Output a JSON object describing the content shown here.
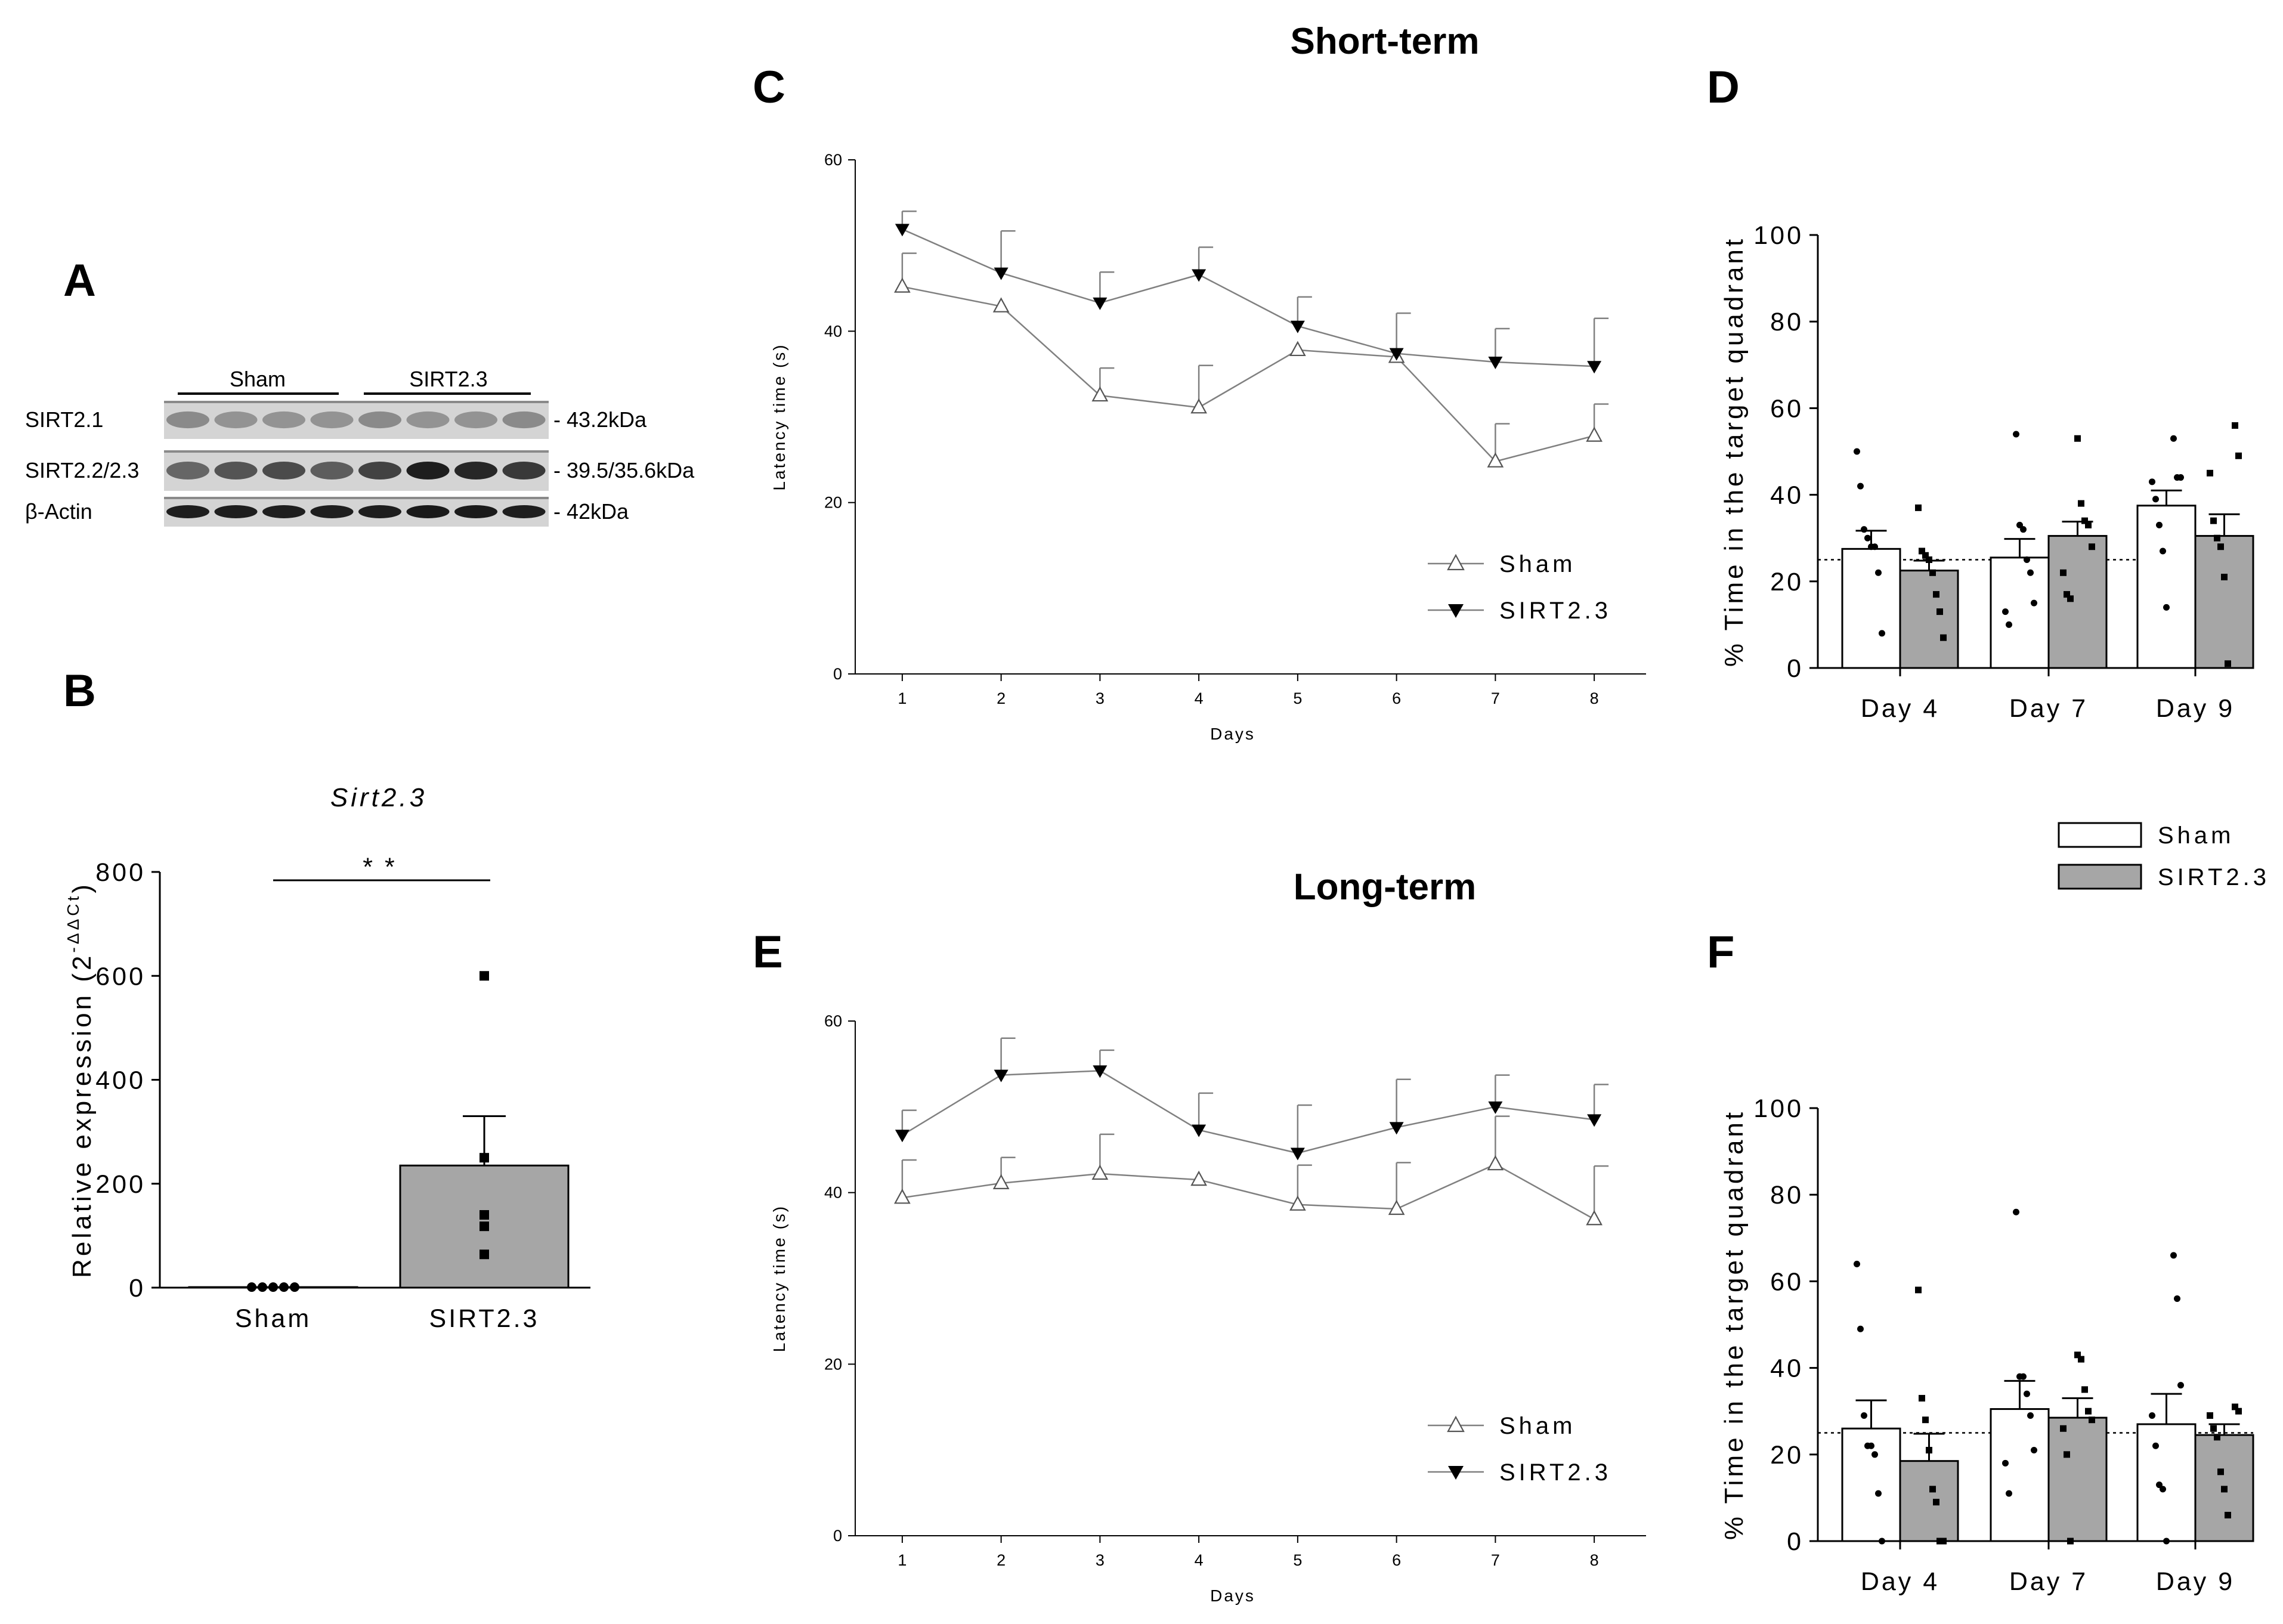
{
  "figure": {
    "short_term_title": "Short-term",
    "long_term_title": "Long-term",
    "panel_letters": [
      "A",
      "B",
      "C",
      "D",
      "E",
      "F"
    ]
  },
  "colors": {
    "bar_sirt": "#a6a6a6",
    "bar_sham": "#ffffff",
    "line": "#808080",
    "ink": "#000000"
  },
  "western_blot": {
    "group_labels": [
      "Sham",
      "SIRT2.3"
    ],
    "band_labels_left": [
      "SIRT2.1",
      "SIRT2.2/2.3",
      "β-Actin"
    ],
    "band_labels_right": [
      "- 43.2kDa",
      "- 39.5/35.6kDa",
      "- 42kDa"
    ],
    "band_intensity": {
      "sirt21": [
        0.35,
        0.3,
        0.3,
        0.3,
        0.35,
        0.3,
        0.3,
        0.35
      ],
      "sirt223": [
        0.55,
        0.65,
        0.7,
        0.6,
        0.75,
        0.95,
        0.9,
        0.8
      ],
      "actin": [
        0.95,
        0.95,
        0.95,
        0.95,
        0.95,
        0.97,
        0.97,
        0.95
      ]
    }
  },
  "chart_data": [
    {
      "panel": "B",
      "type": "bar",
      "title": "Sirt2.3",
      "categories": [
        "Sham",
        "SIRT2.3"
      ],
      "values": [
        1,
        235
      ],
      "sem": [
        0,
        95
      ],
      "points": [
        [
          1,
          1,
          1,
          1,
          1
        ],
        [
          600,
          250,
          140,
          118,
          64
        ]
      ],
      "ylabel": "Relative expression (2-ΔΔCt)",
      "ylabel_main": "Relative expression (2",
      "ylabel_sup": "-ΔΔCt",
      "ylabel_close": ")",
      "ylim": [
        0,
        800
      ],
      "yticks": [
        0,
        200,
        400,
        600,
        800
      ],
      "significance": "* *"
    },
    {
      "panel": "C",
      "type": "line",
      "title": "Short-term",
      "x": [
        1,
        2,
        3,
        4,
        5,
        6,
        7,
        8
      ],
      "series": [
        {
          "name": "Sham",
          "values": [
            45.2,
            42.9,
            32.5,
            31.1,
            37.8,
            37.0,
            24.8,
            27.8
          ],
          "sem": [
            3.9,
            0,
            3.2,
            4.9,
            0,
            0,
            4.4,
            3.7
          ]
        },
        {
          "name": "SIRT2.3",
          "values": [
            51.9,
            46.8,
            43.3,
            46.6,
            40.6,
            37.4,
            36.4,
            35.9
          ],
          "sem": [
            2.1,
            4.9,
            3.6,
            3.2,
            3.4,
            4.7,
            3.9,
            5.6
          ]
        }
      ],
      "xlabel": "Days",
      "ylabel": "Latency time (s)",
      "ylim": [
        0,
        60
      ],
      "yticks": [
        0,
        20,
        40,
        60
      ],
      "legend": "bottom-right"
    },
    {
      "panel": "D",
      "type": "bar",
      "categories": [
        "Day 4",
        "Day 7",
        "Day 9"
      ],
      "series": [
        {
          "name": "Sham",
          "values": [
            27.5,
            25.5,
            37.5
          ],
          "sem": [
            4.2,
            4.3,
            3.5
          ],
          "points": [
            [
              50,
              42,
              32,
              30,
              28,
              28,
              22,
              8
            ],
            [
              54,
              33,
              32,
              25,
              22,
              15,
              13,
              10
            ],
            [
              53,
              44,
              44,
              43,
              39,
              33,
              27,
              14
            ]
          ]
        },
        {
          "name": "SIRT2.3",
          "values": [
            22.5,
            30.5,
            30.5
          ],
          "sem": [
            2.3,
            3.3,
            5.0
          ],
          "points": [
            [
              37,
              27,
              26,
              25,
              22,
              17,
              13,
              7
            ],
            [
              53,
              38,
              34,
              33,
              28,
              22,
              17,
              16
            ],
            [
              56,
              49,
              45,
              34,
              30,
              28,
              21,
              1
            ]
          ]
        }
      ],
      "chance_level": 25,
      "ylabel": "% Time in the target quadrant",
      "ylim": [
        0,
        100
      ],
      "yticks": [
        0,
        20,
        40,
        60,
        80,
        100
      ]
    },
    {
      "panel": "E",
      "type": "line",
      "title": "Long-term",
      "x": [
        1,
        2,
        3,
        4,
        5,
        6,
        7,
        8
      ],
      "series": [
        {
          "name": "Sham",
          "values": [
            39.4,
            41.1,
            42.2,
            41.5,
            38.6,
            38.1,
            43.3,
            36.9
          ],
          "sem": [
            4.4,
            3.0,
            4.6,
            0,
            4.6,
            5.4,
            5.6,
            6.2
          ]
        },
        {
          "name": "SIRT2.3",
          "values": [
            46.7,
            53.7,
            54.2,
            47.3,
            44.6,
            47.6,
            50.0,
            48.5
          ],
          "sem": [
            2.9,
            4.3,
            2.4,
            4.3,
            5.6,
            5.6,
            3.7,
            4.1
          ]
        }
      ],
      "xlabel": "Days",
      "ylabel": "Latency time (s)",
      "ylim": [
        0,
        60
      ],
      "yticks": [
        0,
        20,
        40,
        60
      ],
      "legend": "bottom-right"
    },
    {
      "panel": "F",
      "type": "bar",
      "categories": [
        "Day 4",
        "Day 7",
        "Day 9"
      ],
      "series": [
        {
          "name": "Sham",
          "values": [
            26.0,
            30.5,
            27.0
          ],
          "sem": [
            6.5,
            6.5,
            7.0
          ],
          "points": [
            [
              64,
              49,
              29,
              22,
              22,
              20,
              11,
              0
            ],
            [
              76,
              38,
              38,
              34,
              29,
              21,
              18,
              11
            ],
            [
              66,
              56,
              36,
              29,
              22,
              13,
              12,
              0
            ]
          ]
        },
        {
          "name": "SIRT2.3",
          "values": [
            18.5,
            28.5,
            24.5
          ],
          "sem": [
            6.3,
            4.5,
            2.5
          ],
          "points": [
            [
              58,
              33,
              28,
              21,
              12,
              9,
              0,
              0
            ],
            [
              43,
              42,
              35,
              30,
              28,
              26,
              20,
              0
            ],
            [
              31,
              30,
              29,
              26,
              24,
              16,
              12,
              6
            ]
          ]
        }
      ],
      "chance_level": 25,
      "ylabel": "% Time in the target quadrant",
      "ylim": [
        0,
        100
      ],
      "yticks": [
        0,
        20,
        40,
        60,
        80,
        100
      ]
    }
  ]
}
